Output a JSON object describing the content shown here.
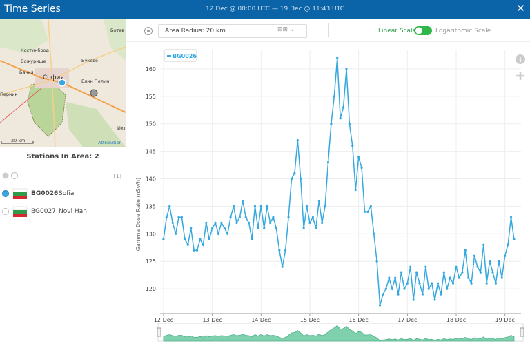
{
  "header": {
    "title": "Time Series",
    "range": "12 Dec @ 00:00 UTC  —  19 Dec @ 11:43 UTC"
  },
  "map": {
    "labels": [
      "Ботев",
      "Костинброд",
      "Буково",
      "Божурище",
      "Банкя",
      "София",
      "Елин Пелин",
      "Перник",
      "Ихт"
    ],
    "scale": "20 km",
    "attribution": "Attribution"
  },
  "stations": {
    "title": "Stations In Area: 2",
    "count": "[1]",
    "rows": [
      {
        "id": "BG0026",
        "name": "Sofia"
      },
      {
        "id": "BG0027",
        "name": "Novi Han"
      }
    ]
  },
  "toolbar": {
    "radius": "Area Radius: 20 km",
    "linear": "Linear Scale",
    "log": "Logarithmic Scale"
  },
  "chart_data": {
    "type": "line",
    "ylabel": "Gamma Dose Rate (nSv/h)",
    "xlim": [
      -0.07,
      7.33
    ],
    "ylim": [
      115.5,
      163.5
    ],
    "yticks": [
      120,
      125,
      130,
      135,
      140,
      145,
      150,
      155,
      160
    ],
    "xticks": [
      {
        "value": 0,
        "label": "12 Dec"
      },
      {
        "value": 1,
        "label": "13 Dec"
      },
      {
        "value": 2,
        "label": "14 Dec"
      },
      {
        "value": 3,
        "label": "15 Dec"
      },
      {
        "value": 4,
        "label": "16 Dec"
      },
      {
        "value": 5,
        "label": "17 Dec"
      },
      {
        "value": 6,
        "label": "18 Dec"
      },
      {
        "value": 7,
        "label": "19 Dec"
      }
    ],
    "grid": true,
    "x": [
      0,
      0.0625,
      0.125,
      0.1875,
      0.25,
      0.3125,
      0.375,
      0.4375,
      0.5,
      0.5625,
      0.625,
      0.6875,
      0.75,
      0.8125,
      0.875,
      0.9375,
      1,
      1.0625,
      1.125,
      1.1875,
      1.25,
      1.3125,
      1.375,
      1.4375,
      1.5,
      1.5625,
      1.625,
      1.6875,
      1.75,
      1.8125,
      1.875,
      1.9375,
      2,
      2.0625,
      2.125,
      2.1875,
      2.25,
      2.3125,
      2.375,
      2.4375,
      2.5,
      2.5625,
      2.625,
      2.6875,
      2.75,
      2.8125,
      2.875,
      2.9375,
      3,
      3.0625,
      3.125,
      3.1875,
      3.25,
      3.3125,
      3.375,
      3.4375,
      3.5,
      3.5625,
      3.625,
      3.6875,
      3.75,
      3.8125,
      3.875,
      3.9375,
      4,
      4.0625,
      4.125,
      4.1875,
      4.25,
      4.3125,
      4.375,
      4.4375,
      4.5,
      4.5625,
      4.625,
      4.6875,
      4.75,
      4.8125,
      4.875,
      4.9375,
      5,
      5.0625,
      5.125,
      5.1875,
      5.25,
      5.3125,
      5.375,
      5.4375,
      5.5,
      5.5625,
      5.625,
      5.6875,
      5.75,
      5.8125,
      5.875,
      5.9375,
      6,
      6.0625,
      6.125,
      6.1875,
      6.25,
      6.3125,
      6.375,
      6.4375,
      6.5,
      6.5625,
      6.625,
      6.6875,
      6.75,
      6.8125,
      6.875,
      6.9375,
      7,
      7.0625,
      7.125,
      7.1875
    ],
    "series": [
      {
        "name": "BG0026",
        "color": "#35a8e0",
        "values": [
          129,
          133,
          135,
          132,
          130,
          133,
          133,
          129,
          128,
          131,
          127,
          127,
          129,
          128,
          132,
          129,
          131,
          132,
          130,
          132,
          131,
          130,
          133,
          135,
          132,
          133,
          136,
          133,
          132,
          129,
          135,
          131,
          135,
          131,
          135,
          132,
          133,
          131,
          127,
          124,
          127,
          133,
          140,
          141,
          147,
          140,
          131,
          135,
          132,
          133,
          131,
          136,
          132,
          135,
          143,
          150,
          155,
          162,
          151,
          153,
          160,
          150,
          146,
          138,
          144,
          142,
          134,
          134,
          135,
          130,
          125,
          117,
          119,
          120,
          122,
          120,
          122,
          119,
          123,
          120,
          121,
          124,
          118,
          123,
          121,
          119,
          124,
          120,
          121,
          118,
          121,
          119,
          123,
          120,
          122,
          121,
          124,
          122,
          123,
          127,
          122,
          121,
          126,
          124,
          123,
          128,
          121,
          125,
          123,
          121,
          125,
          122,
          126,
          128,
          133,
          129
        ]
      }
    ]
  }
}
